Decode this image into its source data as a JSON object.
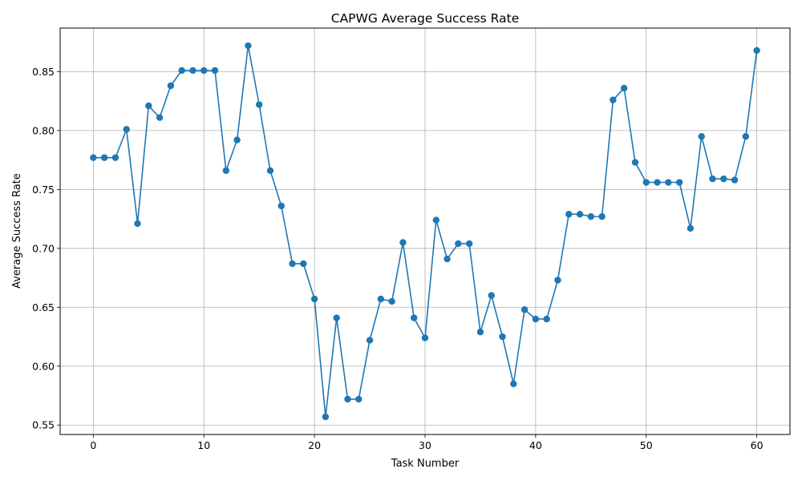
{
  "chart_data": {
    "type": "line",
    "title": "CAPWG Average Success Rate",
    "xlabel": "Task Number",
    "ylabel": "Average Success Rate",
    "xlim": [
      -3,
      63
    ],
    "ylim": [
      0.542,
      0.887
    ],
    "xticks": [
      0,
      10,
      20,
      30,
      40,
      50,
      60
    ],
    "yticks": [
      0.55,
      0.6,
      0.65,
      0.7,
      0.75,
      0.8,
      0.85
    ],
    "ytick_labels": [
      "0.55",
      "0.60",
      "0.65",
      "0.70",
      "0.75",
      "0.80",
      "0.85"
    ],
    "grid": true,
    "marker": "circle",
    "color": "#1f77b4",
    "x": [
      0,
      1,
      2,
      3,
      4,
      5,
      6,
      7,
      8,
      9,
      10,
      11,
      12,
      13,
      14,
      15,
      16,
      17,
      18,
      19,
      20,
      21,
      22,
      23,
      24,
      25,
      26,
      27,
      28,
      29,
      30,
      31,
      32,
      33,
      34,
      35,
      36,
      37,
      38,
      39,
      40,
      41,
      42,
      43,
      44,
      45,
      46,
      47,
      48,
      49,
      50,
      51,
      52,
      53,
      54,
      55,
      56,
      57,
      58,
      59,
      60
    ],
    "values": [
      0.777,
      0.777,
      0.777,
      0.801,
      0.721,
      0.821,
      0.811,
      0.838,
      0.851,
      0.851,
      0.851,
      0.851,
      0.766,
      0.792,
      0.872,
      0.822,
      0.766,
      0.736,
      0.687,
      0.687,
      0.657,
      0.557,
      0.641,
      0.572,
      0.572,
      0.622,
      0.657,
      0.655,
      0.705,
      0.641,
      0.624,
      0.724,
      0.691,
      0.704,
      0.704,
      0.629,
      0.66,
      0.625,
      0.585,
      0.648,
      0.64,
      0.64,
      0.673,
      0.729,
      0.729,
      0.727,
      0.727,
      0.826,
      0.836,
      0.773,
      0.756,
      0.756,
      0.756,
      0.756,
      0.717,
      0.795,
      0.759,
      0.759,
      0.758,
      0.795,
      0.868
    ]
  }
}
